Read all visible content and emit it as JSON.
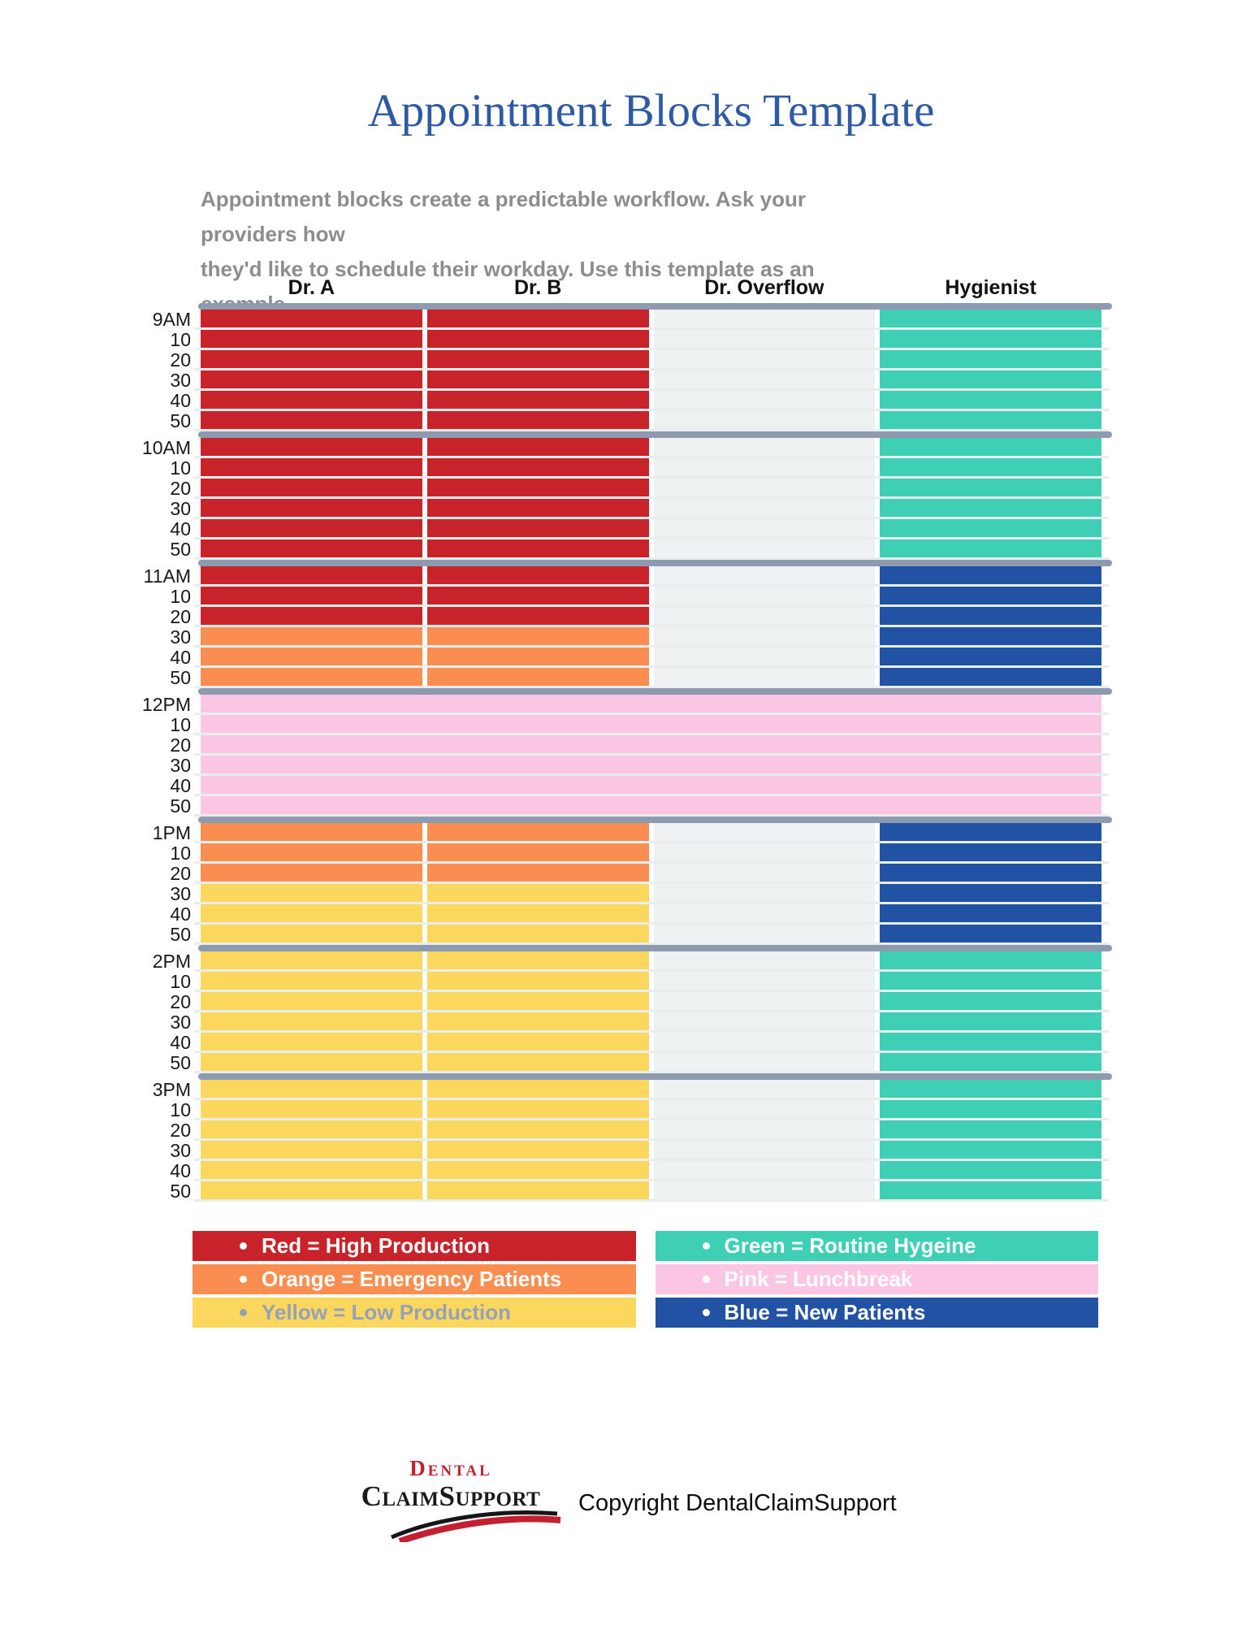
{
  "page": {
    "title": "Appointment Blocks Template",
    "subtitle_line1": "Appointment blocks create a predictable workflow. Ask your providers how",
    "subtitle_line2": "they'd like to schedule their workday. Use this template as an example."
  },
  "colors": {
    "red": "#c8222a",
    "orange": "#f98e50",
    "yellow": "#fcd75e",
    "green": "#3fcfb5",
    "blue": "#2152a3",
    "pink": "#fbc6e3",
    "empty": "#eef1f1",
    "section_bar": "#8d9ab0",
    "row_divider": "#e8eded"
  },
  "schedule": {
    "columns": [
      "Dr. A",
      "Dr. B",
      "Dr. Overflow",
      "Hygienist"
    ],
    "minute_labels": [
      "10",
      "20",
      "30",
      "40",
      "50"
    ],
    "sections": [
      {
        "hour_label": "9AM",
        "rows": [
          [
            "red",
            "red",
            "empty",
            "green"
          ],
          [
            "red",
            "red",
            "empty",
            "green"
          ],
          [
            "red",
            "red",
            "empty",
            "green"
          ],
          [
            "red",
            "red",
            "empty",
            "green"
          ],
          [
            "red",
            "red",
            "empty",
            "green"
          ],
          [
            "red",
            "red",
            "empty",
            "green"
          ]
        ]
      },
      {
        "hour_label": "10AM",
        "rows": [
          [
            "red",
            "red",
            "empty",
            "green"
          ],
          [
            "red",
            "red",
            "empty",
            "green"
          ],
          [
            "red",
            "red",
            "empty",
            "green"
          ],
          [
            "red",
            "red",
            "empty",
            "green"
          ],
          [
            "red",
            "red",
            "empty",
            "green"
          ],
          [
            "red",
            "red",
            "empty",
            "green"
          ]
        ]
      },
      {
        "hour_label": "11AM",
        "rows": [
          [
            "red",
            "red",
            "empty",
            "blue"
          ],
          [
            "red",
            "red",
            "empty",
            "blue"
          ],
          [
            "red",
            "red",
            "empty",
            "blue"
          ],
          [
            "orange",
            "orange",
            "empty",
            "blue"
          ],
          [
            "orange",
            "orange",
            "empty",
            "blue"
          ],
          [
            "orange",
            "orange",
            "empty",
            "blue"
          ]
        ]
      },
      {
        "hour_label": "12PM",
        "rows": [
          [
            "pink"
          ],
          [
            "pink"
          ],
          [
            "pink"
          ],
          [
            "pink"
          ],
          [
            "pink"
          ],
          [
            "pink"
          ]
        ]
      },
      {
        "hour_label": "1PM",
        "rows": [
          [
            "orange",
            "orange",
            "empty",
            "blue"
          ],
          [
            "orange",
            "orange",
            "empty",
            "blue"
          ],
          [
            "orange",
            "orange",
            "empty",
            "blue"
          ],
          [
            "yellow",
            "yellow",
            "empty",
            "blue"
          ],
          [
            "yellow",
            "yellow",
            "empty",
            "blue"
          ],
          [
            "yellow",
            "yellow",
            "empty",
            "blue"
          ]
        ]
      },
      {
        "hour_label": "2PM",
        "rows": [
          [
            "yellow",
            "yellow",
            "empty",
            "green"
          ],
          [
            "yellow",
            "yellow",
            "empty",
            "green"
          ],
          [
            "yellow",
            "yellow",
            "empty",
            "green"
          ],
          [
            "yellow",
            "yellow",
            "empty",
            "green"
          ],
          [
            "yellow",
            "yellow",
            "empty",
            "green"
          ],
          [
            "yellow",
            "yellow",
            "empty",
            "green"
          ]
        ]
      },
      {
        "hour_label": "3PM",
        "rows": [
          [
            "yellow",
            "yellow",
            "empty",
            "green"
          ],
          [
            "yellow",
            "yellow",
            "empty",
            "green"
          ],
          [
            "yellow",
            "yellow",
            "empty",
            "green"
          ],
          [
            "yellow",
            "yellow",
            "empty",
            "green"
          ],
          [
            "yellow",
            "yellow",
            "empty",
            "green"
          ],
          [
            "yellow",
            "yellow",
            "empty",
            "green"
          ]
        ]
      }
    ]
  },
  "legend": {
    "left_items": [
      {
        "label": "Red = High Production",
        "color_key": "red",
        "text_color": "#ffffff"
      },
      {
        "label": "Orange = Emergency Patients",
        "color_key": "orange",
        "text_color": "#ffffff"
      },
      {
        "label": "Yellow = Low Production",
        "color_key": "yellow",
        "text_color": "#93a2b8"
      }
    ],
    "right_items": [
      {
        "label": "Green = Routine Hygeine",
        "color_key": "green",
        "text_color": "#ffffff"
      },
      {
        "label": "Pink = Lunchbreak",
        "color_key": "pink",
        "text_color": "#ffffff"
      },
      {
        "label": "Blue = New Patients",
        "color_key": "blue",
        "text_color": "#ffffff"
      }
    ]
  },
  "footer": {
    "logo_top": "Dental",
    "logo_bottom": "ClaimSupport",
    "copyright": "Copyright DentalClaimSupport"
  }
}
